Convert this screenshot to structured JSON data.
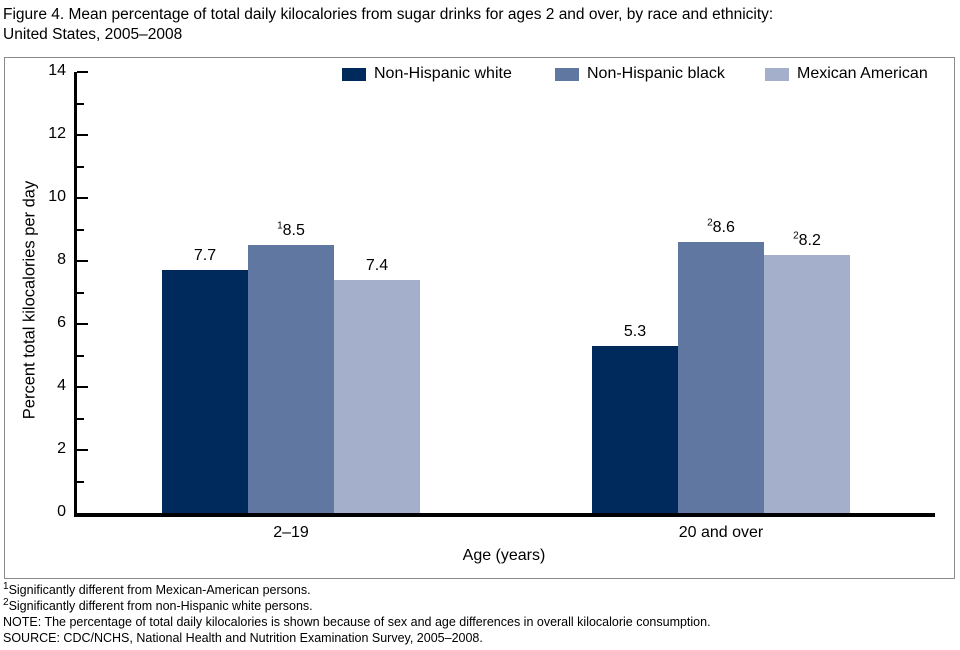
{
  "page": {
    "title_line1": "Figure 4. Mean percentage of total daily kilocalories from sugar drinks for ages 2 and over, by race and ethnicity:",
    "title_line2": "United States, 2005–2008"
  },
  "colors": {
    "non_hispanic_white": "#002a5c",
    "non_hispanic_black": "#5f77a1",
    "mexican_american": "#a4afcc",
    "axis": "#000000",
    "frame_border": "#8a8a8a"
  },
  "legend": {
    "items": [
      {
        "label": "Non-Hispanic white",
        "color": "#002a5c"
      },
      {
        "label": "Non-Hispanic black",
        "color": "#5f77a1"
      },
      {
        "label": "Mexican American",
        "color": "#a4afcc"
      }
    ]
  },
  "chart_data": {
    "type": "bar",
    "title": "Figure 4. Mean percentage of total daily kilocalories from sugar drinks for ages 2 and over, by race and ethnicity: United States, 2005–2008",
    "categories": [
      "2–19",
      "20 and over"
    ],
    "series": [
      {
        "name": "Non-Hispanic white",
        "color": "#002a5c",
        "values": [
          7.7,
          5.3
        ],
        "labels": [
          {
            "sup": "",
            "text": "7.7"
          },
          {
            "sup": "",
            "text": "5.3"
          }
        ]
      },
      {
        "name": "Non-Hispanic black",
        "color": "#5f77a1",
        "values": [
          8.5,
          8.6
        ],
        "labels": [
          {
            "sup": "1",
            "text": "8.5"
          },
          {
            "sup": "2",
            "text": "8.6"
          }
        ]
      },
      {
        "name": "Mexican American",
        "color": "#a4afcc",
        "values": [
          7.4,
          8.2
        ],
        "labels": [
          {
            "sup": "",
            "text": "7.4"
          },
          {
            "sup": "2",
            "text": "8.2"
          }
        ]
      }
    ],
    "xlabel": "Age (years)",
    "ylabel": "Percent total kilocalories per day",
    "ylim": [
      0,
      14
    ],
    "y_ticks": [
      0,
      2,
      4,
      6,
      8,
      10,
      12,
      14
    ],
    "grid": false,
    "legend_position": "top"
  },
  "footnotes": [
    {
      "sup": "1",
      "text": "Significantly different from Mexican-American persons."
    },
    {
      "sup": "2",
      "text": "Significantly different from non-Hispanic white persons."
    },
    {
      "sup": "",
      "text": "NOTE: The percentage of total daily kilocalories is shown because of sex and age differences in overall kilocalorie consumption."
    },
    {
      "sup": "",
      "text": "SOURCE: CDC/NCHS, National Health and Nutrition Examination Survey, 2005–2008."
    }
  ]
}
